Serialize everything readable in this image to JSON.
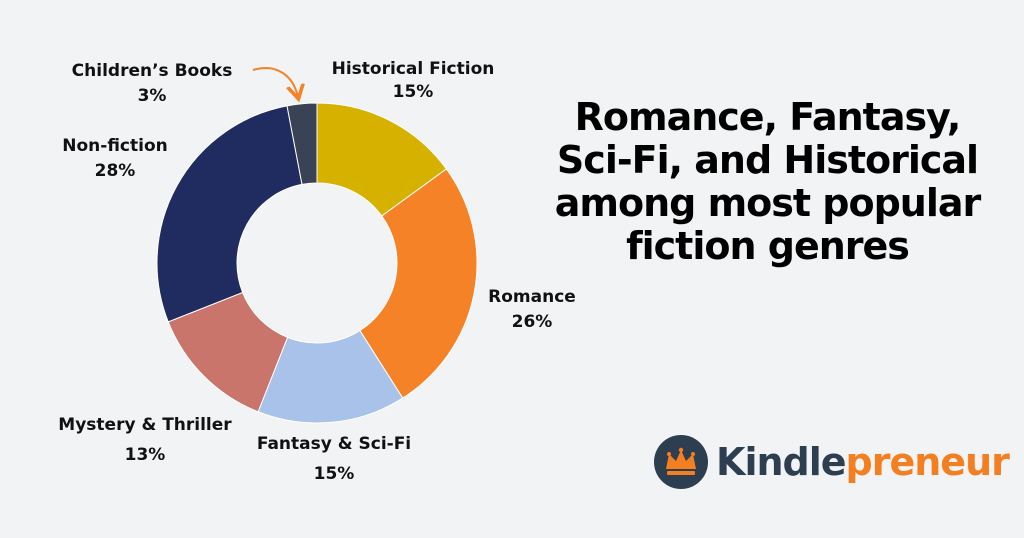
{
  "headline": {
    "lines": [
      "Romance, Fantasy,",
      "Sci-Fi, and Historical",
      "among most popular",
      "fiction genres"
    ]
  },
  "logo": {
    "part1": "Kindle",
    "part2": "preneur",
    "colors": {
      "dark": "#2d3e50",
      "accent": "#f47f20"
    }
  },
  "chart_data": {
    "type": "pie",
    "variant": "donut",
    "start": "top, clockwise",
    "slices": [
      {
        "label": "Historical Fiction",
        "value": 15,
        "display": "15%",
        "color": "#d6b100"
      },
      {
        "label": "Romance",
        "value": 26,
        "display": "26%",
        "color": "#f58226"
      },
      {
        "label": "Fantasy & Sci-Fi",
        "value": 15,
        "display": "15%",
        "color": "#a9c2ea"
      },
      {
        "label": "Mystery & Thriller",
        "value": 13,
        "display": "13%",
        "color": "#c9756b"
      },
      {
        "label": "Non-fiction",
        "value": 28,
        "display": "28%",
        "color": "#202c5f"
      },
      {
        "label": "Children’s Books",
        "value": 3,
        "display": "3%",
        "color": "#3a4256"
      }
    ],
    "annotation_arrow_color": "#f58226"
  }
}
